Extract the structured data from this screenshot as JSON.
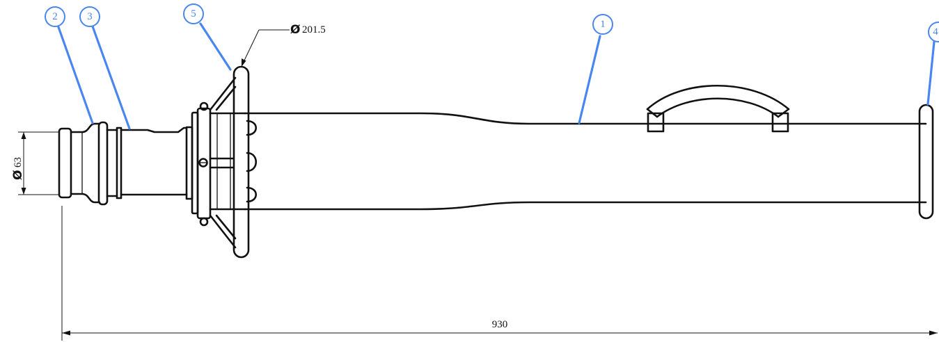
{
  "colors": {
    "line": "#111111",
    "callout": "#4a86f0",
    "background": "#ffffff"
  },
  "callouts": [
    {
      "id": "balloon-1",
      "label": "1"
    },
    {
      "id": "balloon-2",
      "label": "2"
    },
    {
      "id": "balloon-3",
      "label": "3"
    },
    {
      "id": "balloon-4",
      "label": "4"
    },
    {
      "id": "balloon-5",
      "label": "5"
    }
  ],
  "dimensions": {
    "diameter_symbol": "Ø",
    "inlet_diameter": "63",
    "flange_diameter": "201.5",
    "overall_length": "930"
  }
}
